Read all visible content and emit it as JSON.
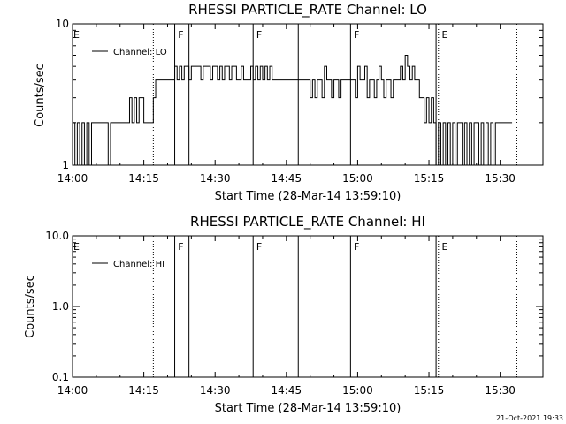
{
  "chart_data": [
    {
      "type": "line",
      "title": "RHESSI PARTICLE_RATE Channel: LO",
      "xlabel": "Start Time (28-Mar-14 13:59:10)",
      "ylabel": "Counts/sec",
      "y_scale": "log",
      "ylim": [
        1,
        10
      ],
      "xlim": [
        0,
        99
      ],
      "x_ticks": [
        {
          "label": "14:00",
          "value": 0
        },
        {
          "label": "14:15",
          "value": 15
        },
        {
          "label": "14:30",
          "value": 30
        },
        {
          "label": "14:45",
          "value": 45
        },
        {
          "label": "15:00",
          "value": 60
        },
        {
          "label": "15:15",
          "value": 75
        },
        {
          "label": "15:30",
          "value": 90
        }
      ],
      "y_ticks": [
        {
          "label": "10",
          "value": 10
        },
        {
          "label": "1",
          "value": 1
        }
      ],
      "legend": {
        "label": "Channel: LO",
        "position": "top-left"
      },
      "solid_lines_min": [
        21.5,
        24.5,
        38,
        47.5,
        58.5,
        76.5
      ],
      "dotted_lines_min": [
        17,
        77,
        93.5
      ],
      "flags": [
        {
          "label": "E",
          "x": 0
        },
        {
          "label": "F",
          "x": 22
        },
        {
          "label": "F",
          "x": 38.5
        },
        {
          "label": "F",
          "x": 59
        },
        {
          "label": "E",
          "x": 77.5
        }
      ],
      "series": [
        {
          "name": "Channel: LO",
          "step": true,
          "x": [
            0,
            0.5,
            1,
            1.5,
            2,
            2.5,
            3,
            3.5,
            4,
            4.5,
            5,
            5.5,
            6,
            6.5,
            7,
            7.5,
            8,
            8.5,
            9,
            9.5,
            10,
            10.5,
            11,
            11.5,
            12,
            12.5,
            13,
            13.5,
            14,
            14.5,
            15,
            15.5,
            16,
            16.5,
            17,
            17.5,
            18,
            18.5,
            19,
            19.5,
            20,
            20.5,
            21,
            21.5,
            22,
            22.5,
            23,
            23.5,
            24,
            24.5,
            25,
            25.5,
            26,
            26.5,
            27,
            27.5,
            28,
            28.5,
            29,
            29.5,
            30,
            30.5,
            31,
            31.5,
            32,
            32.5,
            33,
            33.5,
            34,
            34.5,
            35,
            35.5,
            36,
            36.5,
            37,
            37.5,
            38,
            38.5,
            39,
            39.5,
            40,
            40.5,
            41,
            41.5,
            42,
            42.5,
            43,
            43.5,
            44,
            44.5,
            45,
            45.5,
            46,
            46.5,
            47,
            47.5,
            48,
            48.5,
            49,
            49.5,
            50,
            50.5,
            51,
            51.5,
            52,
            52.5,
            53,
            53.5,
            54,
            54.5,
            55,
            55.5,
            56,
            56.5,
            57,
            57.5,
            58,
            58.5,
            59,
            59.5,
            60,
            60.5,
            61,
            61.5,
            62,
            62.5,
            63,
            63.5,
            64,
            64.5,
            65,
            65.5,
            66,
            66.5,
            67,
            67.5,
            68,
            68.5,
            69,
            69.5,
            70,
            70.5,
            71,
            71.5,
            72,
            72.5,
            73,
            73.5,
            74,
            74.5,
            75,
            75.5,
            76,
            76.5,
            77,
            77.5,
            78,
            78.5,
            79,
            79.5,
            80,
            80.5,
            81,
            81.5,
            82,
            82.5,
            83,
            83.5,
            84,
            84.5,
            85,
            85.5,
            86,
            86.5,
            87,
            87.5,
            88,
            88.5,
            89,
            89.5,
            90,
            90.5,
            91,
            91.5,
            92
          ],
          "y": [
            2,
            1,
            2,
            1,
            2,
            1,
            2,
            1,
            2,
            2,
            2,
            2,
            2,
            2,
            2,
            1,
            2,
            2,
            2,
            2,
            2,
            2,
            2,
            2,
            3,
            2,
            3,
            2,
            3,
            3,
            2,
            2,
            2,
            2,
            3,
            4,
            4,
            4,
            4,
            4,
            4,
            4,
            4,
            5,
            4,
            5,
            4,
            5,
            5,
            4,
            5,
            5,
            5,
            5,
            4,
            5,
            5,
            5,
            4,
            5,
            5,
            4,
            5,
            4,
            5,
            5,
            4,
            5,
            5,
            4,
            4,
            5,
            4,
            4,
            4,
            5,
            4,
            5,
            4,
            5,
            4,
            5,
            4,
            5,
            4,
            4,
            4,
            4,
            4,
            4,
            4,
            4,
            4,
            4,
            4,
            4,
            4,
            4,
            4,
            4,
            3,
            4,
            3,
            4,
            4,
            3,
            5,
            4,
            4,
            3,
            4,
            4,
            3,
            4,
            4,
            4,
            4,
            4,
            4,
            3,
            5,
            4,
            4,
            5,
            3,
            4,
            4,
            3,
            4,
            5,
            4,
            3,
            4,
            4,
            3,
            4,
            4,
            4,
            5,
            4,
            6,
            5,
            4,
            5,
            4,
            4,
            3,
            3,
            2,
            3,
            2,
            3,
            2,
            1,
            2,
            1,
            2,
            1,
            2,
            1,
            2,
            1,
            2,
            2,
            1,
            2,
            1,
            2,
            1,
            2,
            2,
            1,
            2,
            1,
            2,
            1,
            2,
            1,
            2,
            2,
            2,
            2,
            2,
            2,
            2
          ]
        }
      ]
    },
    {
      "type": "line",
      "title": "RHESSI PARTICLE_RATE Channel: HI",
      "xlabel": "Start Time (28-Mar-14 13:59:10)",
      "ylabel": "Counts/sec",
      "y_scale": "log",
      "ylim": [
        0.1,
        10
      ],
      "xlim": [
        0,
        99
      ],
      "x_ticks": [
        {
          "label": "14:00",
          "value": 0
        },
        {
          "label": "14:15",
          "value": 15
        },
        {
          "label": "14:30",
          "value": 30
        },
        {
          "label": "14:45",
          "value": 45
        },
        {
          "label": "15:00",
          "value": 60
        },
        {
          "label": "15:15",
          "value": 75
        },
        {
          "label": "15:30",
          "value": 90
        }
      ],
      "y_ticks": [
        {
          "label": "10.0",
          "value": 10
        },
        {
          "label": "1.0",
          "value": 1
        },
        {
          "label": "0.1",
          "value": 0.1
        }
      ],
      "legend": {
        "label": "Channel: HI",
        "position": "top-left"
      },
      "solid_lines_min": [
        21.5,
        24.5,
        38,
        47.5,
        58.5,
        76.5
      ],
      "dotted_lines_min": [
        17,
        77,
        93.5
      ],
      "flags": [
        {
          "label": "E",
          "x": 0
        },
        {
          "label": "F",
          "x": 22
        },
        {
          "label": "F",
          "x": 38.5
        },
        {
          "label": "F",
          "x": 59
        },
        {
          "label": "E",
          "x": 77.5
        }
      ],
      "series": [
        {
          "name": "Channel: HI",
          "step": true,
          "x": [],
          "y": []
        }
      ]
    }
  ],
  "footer": {
    "timestamp": "21-Oct-2021 19:33"
  }
}
